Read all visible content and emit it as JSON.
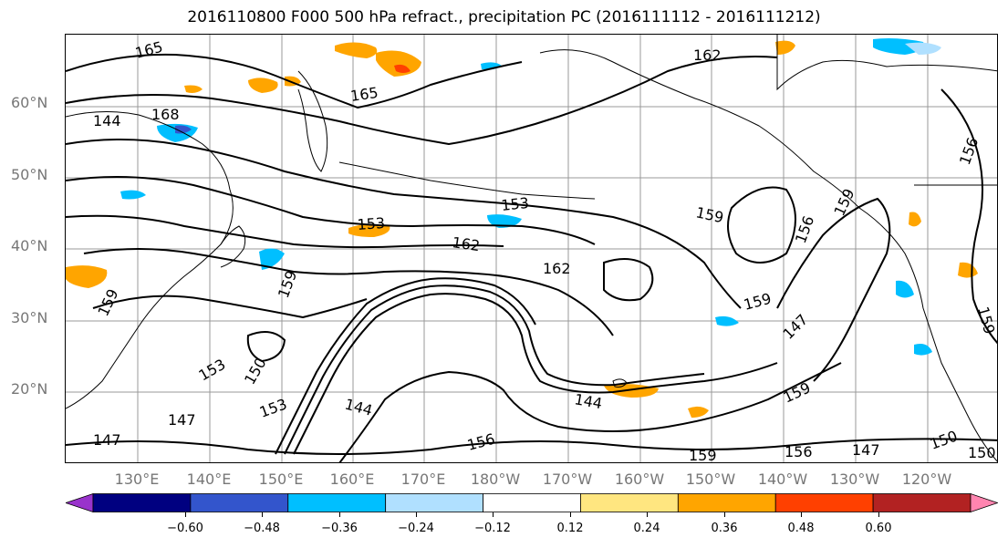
{
  "title": "2016110800 F000 500 hPa refract., precipitation PC (2016111112 - 2016111212)",
  "lat_labels": [
    "60°N",
    "50°N",
    "40°N",
    "30°N",
    "20°N"
  ],
  "lon_labels": [
    "130°E",
    "140°E",
    "150°E",
    "160°E",
    "170°E",
    "180°W",
    "170°W",
    "160°W",
    "150°W",
    "140°W",
    "130°W",
    "120°W"
  ],
  "contour_labels": [
    "165",
    "162",
    "165",
    "168",
    "156",
    "153",
    "159",
    "153",
    "162",
    "162",
    "159",
    "159",
    "159",
    "156",
    "159",
    "159",
    "150",
    "153",
    "147",
    "144",
    "144",
    "147",
    "150",
    "147",
    "159",
    "156",
    "147",
    "150",
    "153",
    "156",
    "159",
    "144"
  ],
  "colorbar": {
    "ticks": [
      "−0.60",
      "−0.48",
      "−0.36",
      "−0.24",
      "−0.12",
      "0.12",
      "0.24",
      "0.36",
      "0.48",
      "0.60"
    ],
    "colors": [
      "#9933cc",
      "#000080",
      "#3355cc",
      "#00bfff",
      "#b0e0ff",
      "#ffffff",
      "#ffe680",
      "#ffa500",
      "#ff4000",
      "#b22222",
      "#ff85b0"
    ]
  },
  "field_colors": {
    "positive_light": "#ffe680",
    "positive_mid": "#ffa500",
    "positive_high": "#ff4000",
    "negative_light": "#b0e0ff",
    "negative_mid": "#00bfff",
    "negative_high": "#3355cc",
    "contour": "#000000",
    "coastline": "#000000",
    "grid": "#999999"
  }
}
